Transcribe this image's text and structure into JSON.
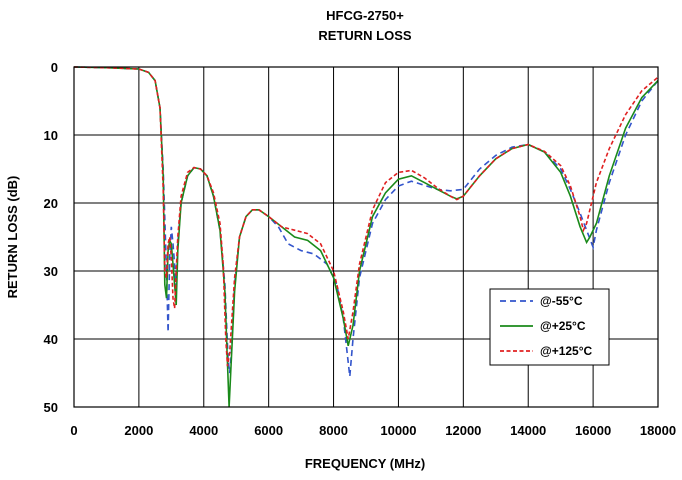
{
  "chart_data": {
    "type": "line",
    "title": "HFCG-2750+",
    "subtitle": "RETURN LOSS",
    "xlabel": "FREQUENCY (MHz)",
    "ylabel": "RETURN LOSS (dB)",
    "xlim": [
      0,
      18000
    ],
    "ylim": [
      0,
      50
    ],
    "y_inverted": true,
    "x_ticks": [
      "0",
      "2000",
      "4000",
      "6000",
      "8000",
      "10000",
      "12000",
      "14000",
      "16000",
      "18000"
    ],
    "y_ticks": [
      "0",
      "10",
      "20",
      "30",
      "40",
      "50"
    ],
    "grid": true,
    "legend_position": "lower-right",
    "series": [
      {
        "name": "@-55°C",
        "color": "#3355cc",
        "style": "dashed",
        "points": [
          [
            0,
            0
          ],
          [
            1000,
            0.1
          ],
          [
            2000,
            0.3
          ],
          [
            2300,
            0.8
          ],
          [
            2500,
            2
          ],
          [
            2650,
            6
          ],
          [
            2750,
            15
          ],
          [
            2850,
            30
          ],
          [
            2900,
            39
          ],
          [
            2950,
            28
          ],
          [
            3000,
            23.5
          ],
          [
            3050,
            26
          ],
          [
            3100,
            29
          ],
          [
            3150,
            33
          ],
          [
            3200,
            26
          ],
          [
            3300,
            20
          ],
          [
            3500,
            16
          ],
          [
            3700,
            14.8
          ],
          [
            3900,
            15
          ],
          [
            4100,
            16
          ],
          [
            4300,
            19
          ],
          [
            4500,
            24
          ],
          [
            4650,
            32
          ],
          [
            4750,
            43
          ],
          [
            4800,
            45
          ],
          [
            4850,
            42
          ],
          [
            4950,
            32
          ],
          [
            5100,
            25
          ],
          [
            5300,
            22
          ],
          [
            5500,
            21
          ],
          [
            5700,
            21
          ],
          [
            6000,
            22
          ],
          [
            6300,
            23.5
          ],
          [
            6600,
            26
          ],
          [
            7000,
            27
          ],
          [
            7400,
            27.5
          ],
          [
            7800,
            29
          ],
          [
            8100,
            32
          ],
          [
            8300,
            37
          ],
          [
            8500,
            45.5
          ],
          [
            8600,
            40
          ],
          [
            8800,
            31
          ],
          [
            9200,
            23
          ],
          [
            9600,
            19.5
          ],
          [
            10000,
            17.5
          ],
          [
            10400,
            16.8
          ],
          [
            10800,
            17.4
          ],
          [
            11200,
            18
          ],
          [
            11600,
            18.2
          ],
          [
            12000,
            18
          ],
          [
            12500,
            15
          ],
          [
            13000,
            13
          ],
          [
            13500,
            11.8
          ],
          [
            14000,
            11.4
          ],
          [
            14500,
            12.5
          ],
          [
            15000,
            15
          ],
          [
            15300,
            18
          ],
          [
            15600,
            21.5
          ],
          [
            15800,
            24
          ],
          [
            16000,
            26.5
          ],
          [
            16100,
            24
          ],
          [
            16500,
            17
          ],
          [
            17000,
            10
          ],
          [
            17500,
            5
          ],
          [
            18000,
            2
          ]
        ]
      },
      {
        "name": "@+25°C",
        "color": "#1a8a1a",
        "style": "solid",
        "points": [
          [
            0,
            0
          ],
          [
            1000,
            0.1
          ],
          [
            2000,
            0.3
          ],
          [
            2300,
            0.8
          ],
          [
            2500,
            2
          ],
          [
            2650,
            6
          ],
          [
            2750,
            16
          ],
          [
            2800,
            32
          ],
          [
            2850,
            34
          ],
          [
            2900,
            27
          ],
          [
            2950,
            25.5
          ],
          [
            3000,
            26
          ],
          [
            3050,
            29
          ],
          [
            3100,
            32
          ],
          [
            3150,
            35
          ],
          [
            3200,
            27
          ],
          [
            3300,
            20
          ],
          [
            3500,
            16
          ],
          [
            3700,
            14.8
          ],
          [
            3900,
            15
          ],
          [
            4100,
            16
          ],
          [
            4300,
            19
          ],
          [
            4500,
            24
          ],
          [
            4650,
            33
          ],
          [
            4720,
            42
          ],
          [
            4780,
            50
          ],
          [
            4830,
            45
          ],
          [
            4950,
            33
          ],
          [
            5100,
            25
          ],
          [
            5300,
            22
          ],
          [
            5500,
            21
          ],
          [
            5700,
            21
          ],
          [
            6000,
            22
          ],
          [
            6400,
            23.5
          ],
          [
            6800,
            25
          ],
          [
            7200,
            25.5
          ],
          [
            7600,
            27
          ],
          [
            8000,
            31
          ],
          [
            8300,
            37
          ],
          [
            8450,
            41
          ],
          [
            8600,
            38
          ],
          [
            8800,
            30
          ],
          [
            9200,
            22
          ],
          [
            9600,
            18.5
          ],
          [
            10000,
            16.5
          ],
          [
            10400,
            16
          ],
          [
            10800,
            17
          ],
          [
            11200,
            18
          ],
          [
            11600,
            19
          ],
          [
            11800,
            19.4
          ],
          [
            12000,
            19
          ],
          [
            12500,
            16
          ],
          [
            13000,
            13.5
          ],
          [
            13500,
            12
          ],
          [
            14000,
            11.4
          ],
          [
            14500,
            12.5
          ],
          [
            15000,
            15.5
          ],
          [
            15300,
            19
          ],
          [
            15600,
            23.5
          ],
          [
            15800,
            25.8
          ],
          [
            15900,
            25
          ],
          [
            16100,
            23
          ],
          [
            16500,
            16
          ],
          [
            17000,
            9
          ],
          [
            17500,
            4.5
          ],
          [
            18000,
            2
          ]
        ]
      },
      {
        "name": "@+125°C",
        "color": "#e02020",
        "style": "dashed",
        "points": [
          [
            0,
            0
          ],
          [
            1000,
            0.1
          ],
          [
            2000,
            0.3
          ],
          [
            2300,
            0.8
          ],
          [
            2500,
            2
          ],
          [
            2650,
            6
          ],
          [
            2750,
            18
          ],
          [
            2800,
            30
          ],
          [
            2850,
            31
          ],
          [
            2900,
            26
          ],
          [
            2950,
            25
          ],
          [
            3000,
            28
          ],
          [
            3050,
            34
          ],
          [
            3100,
            35.5
          ],
          [
            3150,
            30
          ],
          [
            3200,
            25
          ],
          [
            3300,
            19
          ],
          [
            3500,
            15.5
          ],
          [
            3700,
            14.8
          ],
          [
            3900,
            15
          ],
          [
            4100,
            16
          ],
          [
            4300,
            18.5
          ],
          [
            4500,
            23
          ],
          [
            4600,
            29
          ],
          [
            4680,
            40
          ],
          [
            4730,
            44
          ],
          [
            4800,
            42
          ],
          [
            4950,
            31
          ],
          [
            5100,
            25
          ],
          [
            5300,
            22
          ],
          [
            5500,
            21
          ],
          [
            5700,
            21
          ],
          [
            6000,
            22
          ],
          [
            6400,
            23.5
          ],
          [
            6800,
            24
          ],
          [
            7200,
            24.5
          ],
          [
            7600,
            26
          ],
          [
            8000,
            30
          ],
          [
            8300,
            36
          ],
          [
            8450,
            40
          ],
          [
            8600,
            36
          ],
          [
            8800,
            29
          ],
          [
            9200,
            21
          ],
          [
            9600,
            17
          ],
          [
            10000,
            15.5
          ],
          [
            10400,
            15.2
          ],
          [
            10800,
            16.3
          ],
          [
            11200,
            17.8
          ],
          [
            11600,
            19
          ],
          [
            11800,
            19.5
          ],
          [
            12000,
            19
          ],
          [
            12500,
            16
          ],
          [
            13000,
            13.5
          ],
          [
            13500,
            12
          ],
          [
            14000,
            11.4
          ],
          [
            14500,
            12.4
          ],
          [
            15000,
            14.5
          ],
          [
            15300,
            17.5
          ],
          [
            15600,
            22
          ],
          [
            15700,
            24
          ],
          [
            15800,
            23
          ],
          [
            16100,
            17
          ],
          [
            16500,
            12
          ],
          [
            17000,
            7
          ],
          [
            17500,
            3.5
          ],
          [
            18000,
            1.5
          ]
        ]
      }
    ]
  }
}
